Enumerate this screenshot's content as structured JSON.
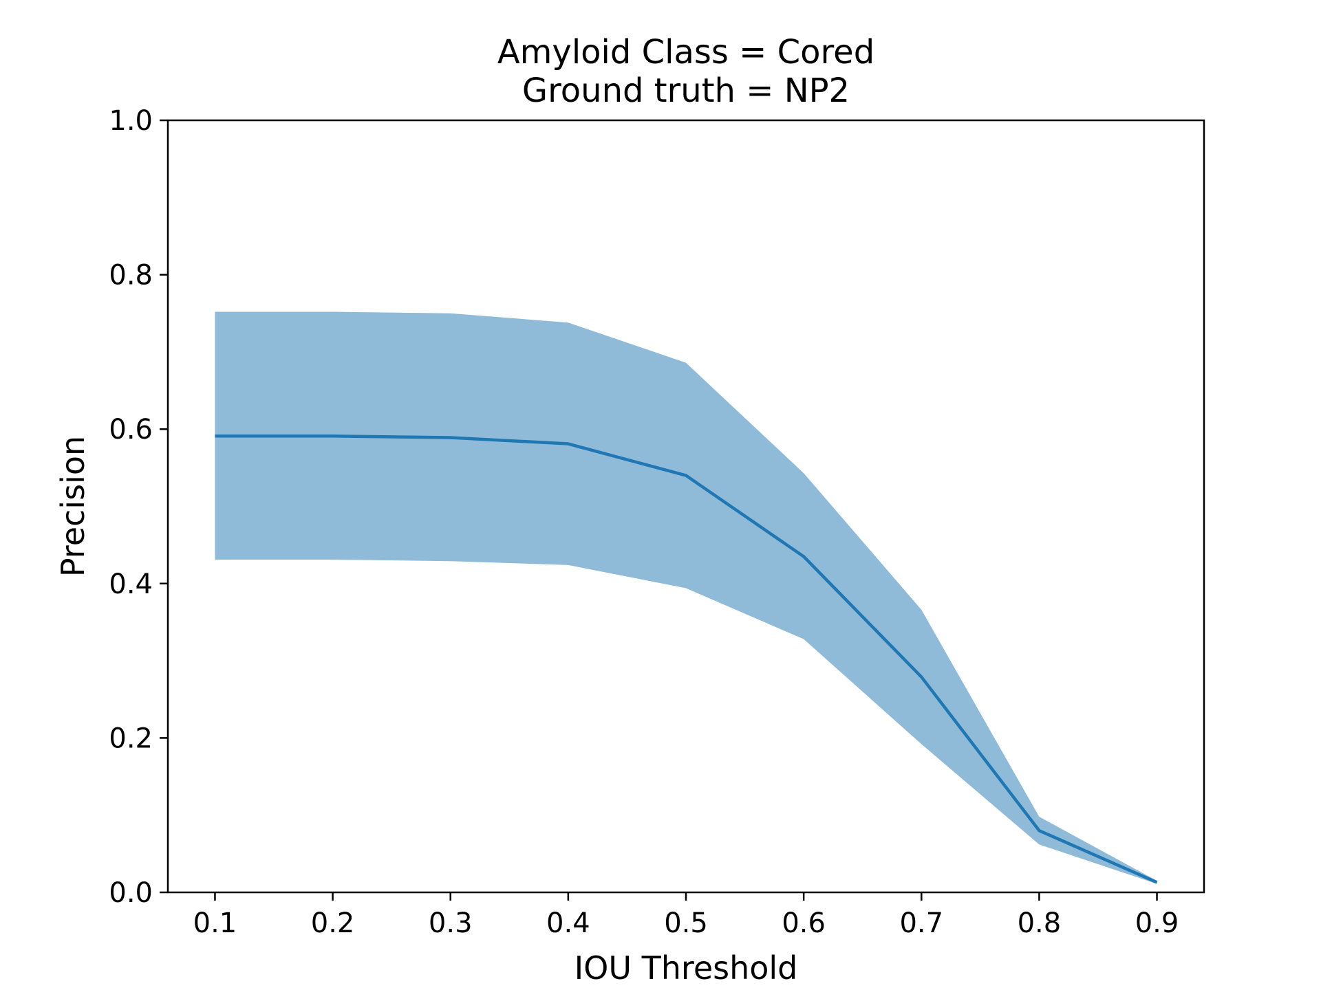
{
  "chart_data": {
    "type": "line",
    "title": [
      "Amyloid Class = Cored",
      "Ground truth = NP2"
    ],
    "xlabel": "IOU Threshold",
    "ylabel": "Precision",
    "xlim": [
      0.06,
      0.94
    ],
    "ylim": [
      0.0,
      1.0
    ],
    "xticks": [
      "0.1",
      "0.2",
      "0.3",
      "0.4",
      "0.5",
      "0.6",
      "0.7",
      "0.8",
      "0.9"
    ],
    "yticks": [
      "0.0",
      "0.2",
      "0.4",
      "0.6",
      "0.8",
      "1.0"
    ],
    "grid": false,
    "line_color": "#1f77b4",
    "band_color": "#1f77b4",
    "band_opacity": 0.5,
    "series": [
      {
        "x": [
          0.1,
          0.2,
          0.3,
          0.4,
          0.5,
          0.6,
          0.7,
          0.8,
          0.9
        ],
        "values": [
          0.591,
          0.591,
          0.589,
          0.581,
          0.54,
          0.435,
          0.279,
          0.08,
          0.013
        ],
        "upper": [
          0.752,
          0.752,
          0.75,
          0.738,
          0.686,
          0.543,
          0.366,
          0.098,
          0.015
        ],
        "lower": [
          0.431,
          0.431,
          0.429,
          0.424,
          0.394,
          0.328,
          0.192,
          0.062,
          0.011
        ]
      }
    ]
  }
}
